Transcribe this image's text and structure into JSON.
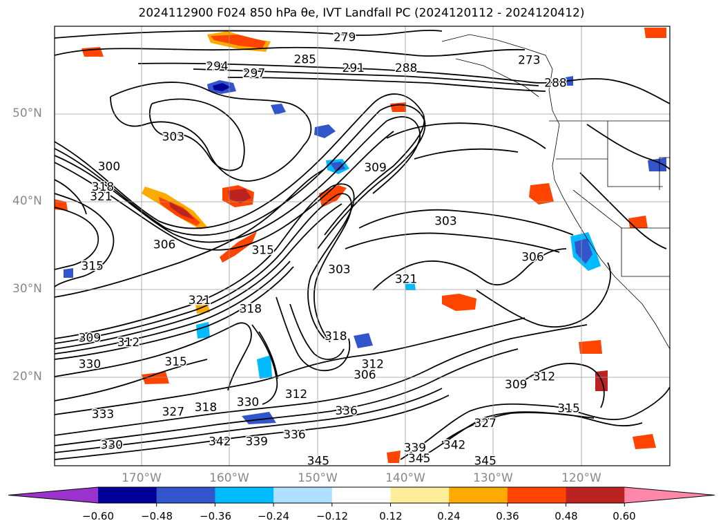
{
  "title": "2024112900 F024 850 hPa θe, IVT Landfall PC (2024120112 - 2024120412)",
  "lat_labels": [
    "50°N",
    "40°N",
    "30°N",
    "20°N"
  ],
  "lon_labels": [
    "170°W",
    "160°W",
    "150°W",
    "140°W",
    "130°W",
    "120°W"
  ],
  "colorbar": {
    "colors": [
      "#9933cc",
      "#000099",
      "#3355cc",
      "#00bbff",
      "#b0e0ff",
      "#ffffff",
      "#ffee99",
      "#ffaa00",
      "#ff4400",
      "#bb2222",
      "#ff88aa"
    ],
    "labels": [
      "−0.60",
      "−0.48",
      "−0.36",
      "−0.24",
      "−0.12",
      "0.12",
      "0.24",
      "0.36",
      "0.48",
      "0.60"
    ]
  },
  "contour_labels": [
    {
      "text": "279",
      "lon": -147,
      "lat": 58.7
    },
    {
      "text": "285",
      "lon": -151.5,
      "lat": 56.2
    },
    {
      "text": "291",
      "lon": -146,
      "lat": 55.2
    },
    {
      "text": "288",
      "lon": -140,
      "lat": 55.2
    },
    {
      "text": "294",
      "lon": -161.5,
      "lat": 55.4
    },
    {
      "text": "297",
      "lon": -157.3,
      "lat": 54.6
    },
    {
      "text": "273",
      "lon": -126,
      "lat": 56.1
    },
    {
      "text": "288",
      "lon": -123,
      "lat": 53.5
    },
    {
      "text": "303",
      "lon": -166.5,
      "lat": 47.4
    },
    {
      "text": "300",
      "lon": -173.8,
      "lat": 44
    },
    {
      "text": "318",
      "lon": -174.5,
      "lat": 41.7
    },
    {
      "text": "321",
      "lon": -174.7,
      "lat": 40.6
    },
    {
      "text": "309",
      "lon": -143.5,
      "lat": 43.9
    },
    {
      "text": "303",
      "lon": -135.5,
      "lat": 37.8
    },
    {
      "text": "306",
      "lon": -167.5,
      "lat": 35.1
    },
    {
      "text": "315",
      "lon": -175.7,
      "lat": 32.7
    },
    {
      "text": "315",
      "lon": -156.3,
      "lat": 34.5
    },
    {
      "text": "303",
      "lon": -147.6,
      "lat": 32.3
    },
    {
      "text": "321",
      "lon": -140,
      "lat": 31.2
    },
    {
      "text": "306",
      "lon": -125.6,
      "lat": 33.7
    },
    {
      "text": "321",
      "lon": -163.5,
      "lat": 28.8
    },
    {
      "text": "318",
      "lon": -157.7,
      "lat": 27.8
    },
    {
      "text": "309",
      "lon": -176,
      "lat": 24.5
    },
    {
      "text": "312",
      "lon": -171.6,
      "lat": 24
    },
    {
      "text": "318",
      "lon": -148,
      "lat": 24.7
    },
    {
      "text": "330",
      "lon": -176,
      "lat": 21.5
    },
    {
      "text": "315",
      "lon": -166.2,
      "lat": 21.8
    },
    {
      "text": "312",
      "lon": -143.8,
      "lat": 21.5
    },
    {
      "text": "306",
      "lon": -144.7,
      "lat": 20.3
    },
    {
      "text": "309",
      "lon": -127.5,
      "lat": 19.2
    },
    {
      "text": "312",
      "lon": -124.3,
      "lat": 20.1
    },
    {
      "text": "312",
      "lon": -152.5,
      "lat": 18.1
    },
    {
      "text": "330",
      "lon": -158,
      "lat": 17.2
    },
    {
      "text": "318",
      "lon": -162.8,
      "lat": 16.6
    },
    {
      "text": "327",
      "lon": -166.5,
      "lat": 16.1
    },
    {
      "text": "336",
      "lon": -146.8,
      "lat": 16.2
    },
    {
      "text": "336",
      "lon": -152.7,
      "lat": 13.5
    },
    {
      "text": "333",
      "lon": -174.5,
      "lat": 15.8
    },
    {
      "text": "327",
      "lon": -131,
      "lat": 14.8
    },
    {
      "text": "315",
      "lon": -121.5,
      "lat": 16.5
    },
    {
      "text": "342",
      "lon": -161.2,
      "lat": 12.7
    },
    {
      "text": "339",
      "lon": -157,
      "lat": 12.7
    },
    {
      "text": "330",
      "lon": -173.5,
      "lat": 12.3
    },
    {
      "text": "342",
      "lon": -134.5,
      "lat": 12.3
    },
    {
      "text": "345",
      "lon": -150,
      "lat": 10.5
    },
    {
      "text": "345",
      "lon": -131,
      "lat": 10.5
    },
    {
      "text": "339",
      "lon": -139,
      "lat": 12
    },
    {
      "text": "345",
      "lon": -138.5,
      "lat": 10.8
    }
  ]
}
